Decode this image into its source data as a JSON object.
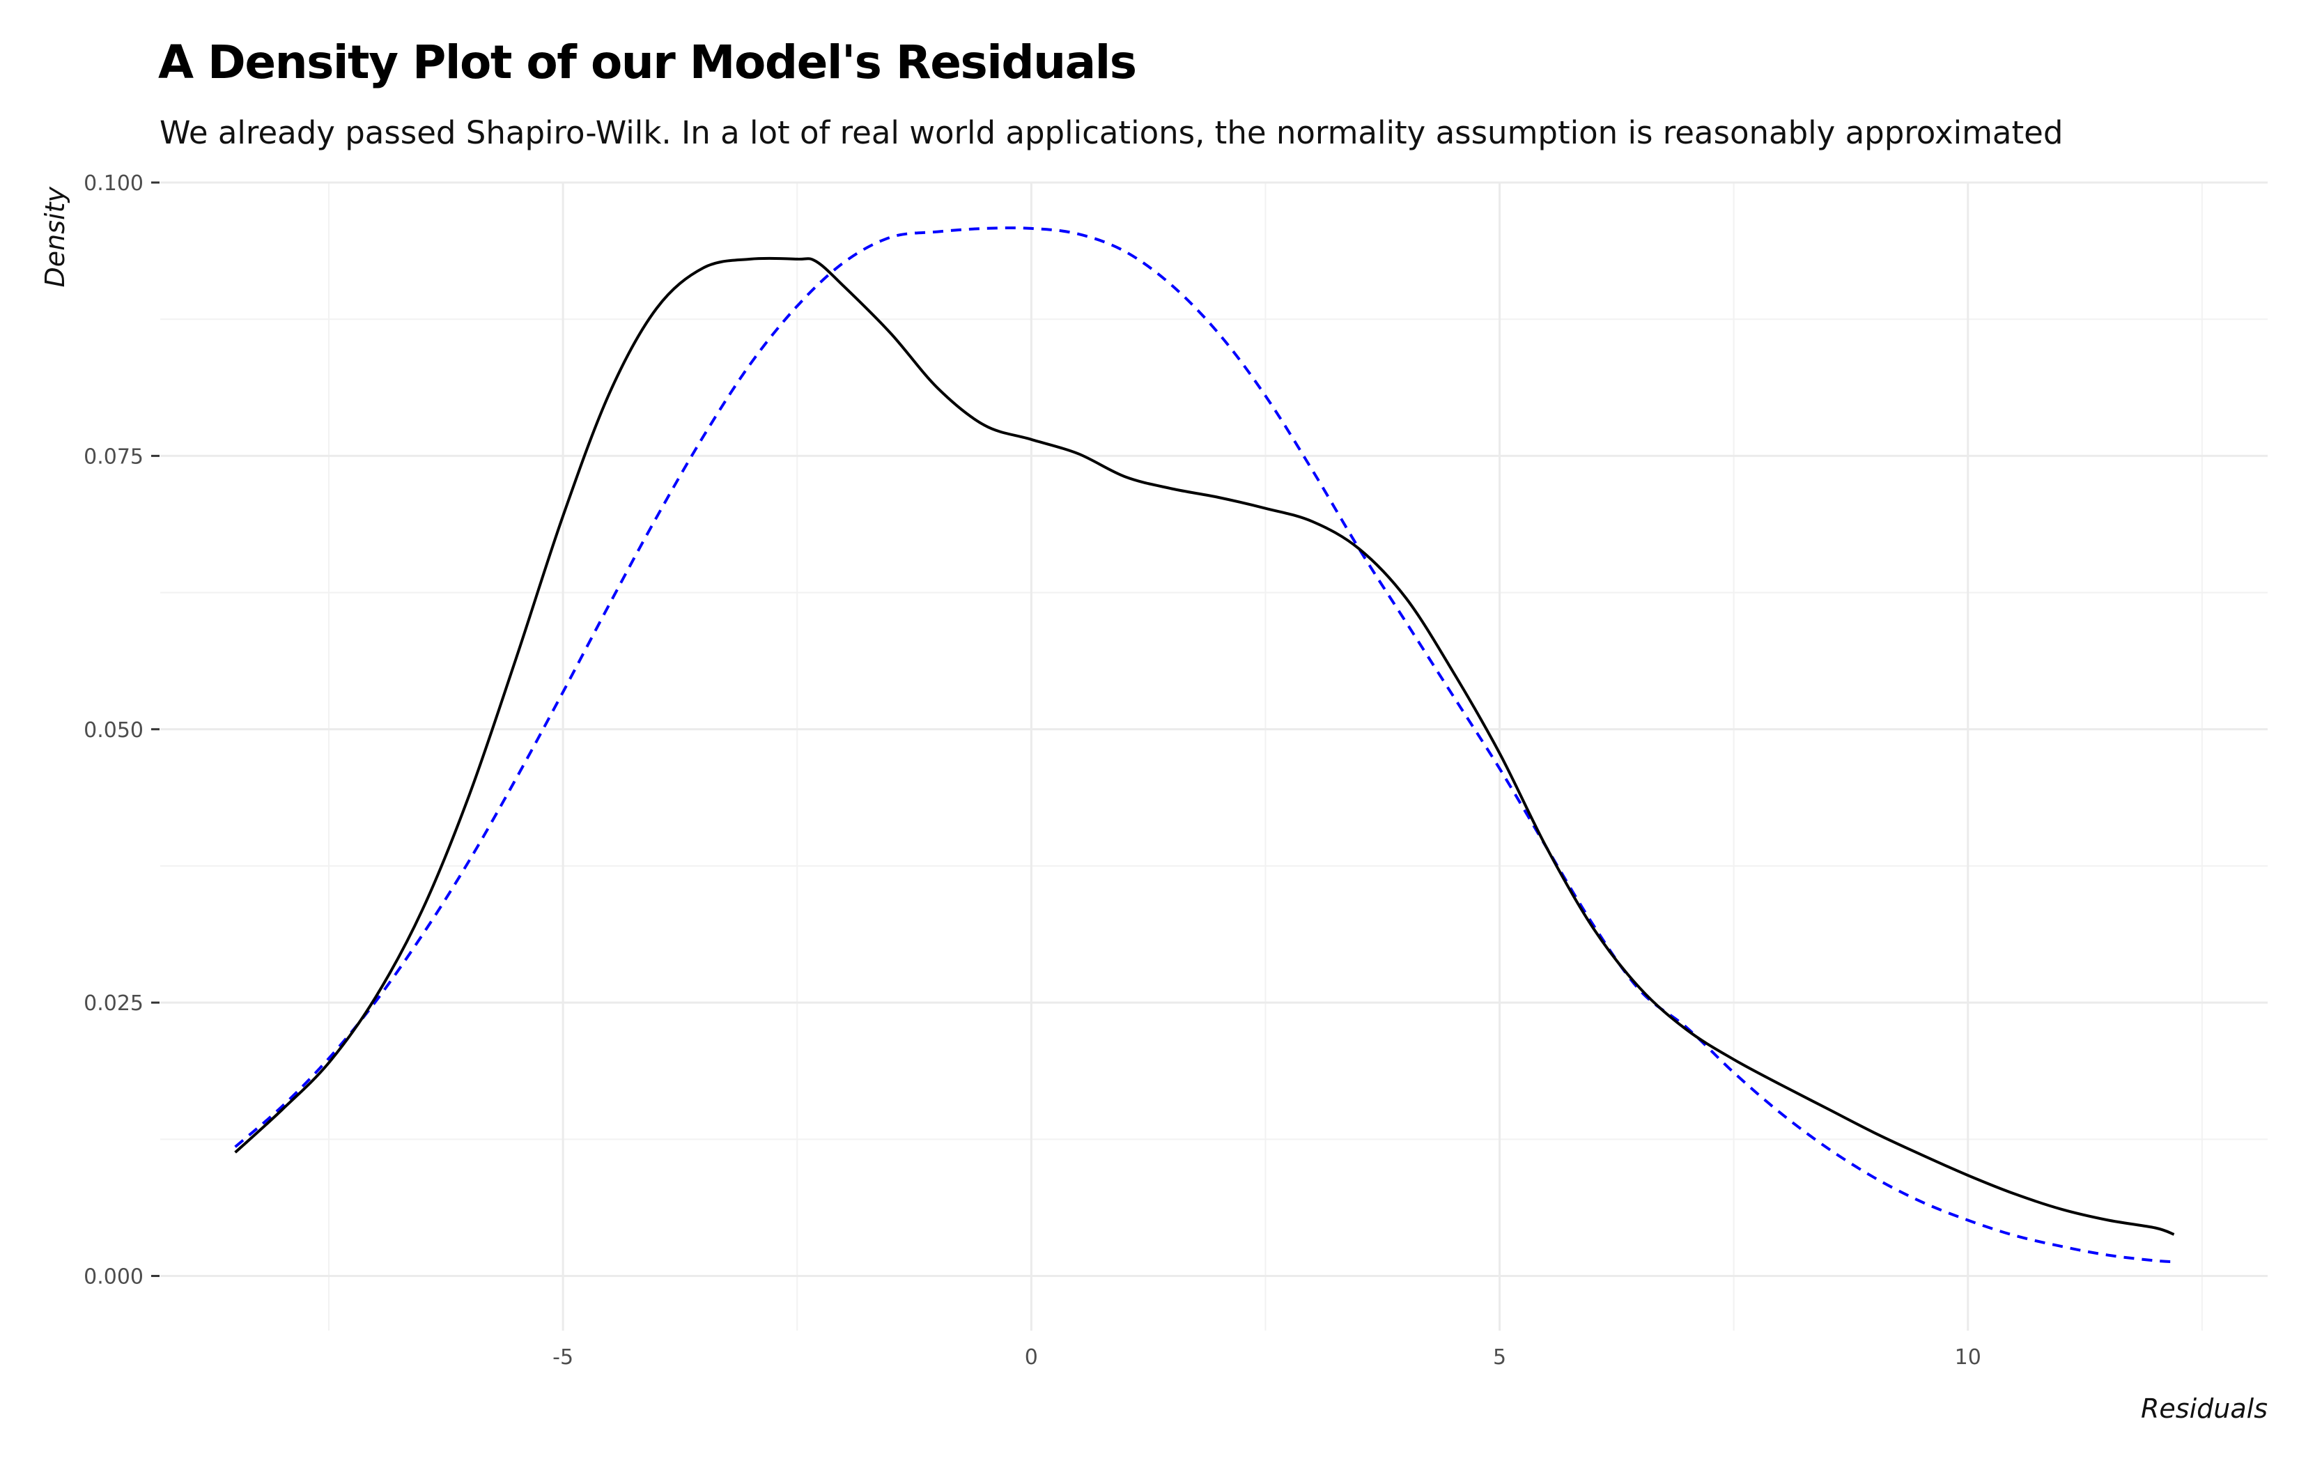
{
  "chart_data": {
    "type": "line",
    "title": "A Density Plot of our Model's Residuals",
    "subtitle": "We already passed Shapiro-Wilk. In a lot of real world applications, the normality assumption is reasonably approximated",
    "xlabel": "Residuals",
    "ylabel": "Density",
    "xlim": [
      -9.3,
      13.2
    ],
    "ylim": [
      -0.005,
      0.1
    ],
    "x_ticks": [
      -5,
      0,
      5,
      10
    ],
    "x_tick_labels": [
      "-5",
      "0",
      "5",
      "10"
    ],
    "y_ticks": [
      0.0,
      0.025,
      0.05,
      0.075,
      0.1
    ],
    "y_tick_labels": [
      "0.000",
      "0.025",
      "0.050",
      "0.075",
      "0.100"
    ],
    "grid": true,
    "legend": "none",
    "series": [
      {
        "style": "solid",
        "color": "#000000",
        "x": [
          -8.5,
          -8.0,
          -7.5,
          -7.0,
          -6.5,
          -6.0,
          -5.5,
          -5.0,
          -4.5,
          -4.0,
          -3.5,
          -3.0,
          -2.5,
          -2.3,
          -2.0,
          -1.5,
          -1.0,
          -0.5,
          0.0,
          0.5,
          1.0,
          1.5,
          2.0,
          2.5,
          3.0,
          3.5,
          4.0,
          4.5,
          5.0,
          5.5,
          6.0,
          6.5,
          7.0,
          7.5,
          8.0,
          8.5,
          9.0,
          9.5,
          10.0,
          10.5,
          11.0,
          11.5,
          12.0,
          12.2
        ],
        "y": [
          0.0113,
          0.0152,
          0.0195,
          0.0255,
          0.0335,
          0.044,
          0.0565,
          0.0695,
          0.0808,
          0.0885,
          0.0922,
          0.093,
          0.093,
          0.0928,
          0.0905,
          0.0862,
          0.0812,
          0.0778,
          0.0765,
          0.0752,
          0.0731,
          0.072,
          0.0712,
          0.0702,
          0.069,
          0.0665,
          0.062,
          0.0553,
          0.0478,
          0.0392,
          0.0318,
          0.0263,
          0.0225,
          0.0198,
          0.0175,
          0.0153,
          0.0131,
          0.0111,
          0.0092,
          0.0075,
          0.0061,
          0.0051,
          0.0044,
          0.0038
        ]
      },
      {
        "style": "dashed",
        "color": "#0000ff",
        "x": [
          -8.5,
          -8.0,
          -7.5,
          -7.0,
          -6.5,
          -6.0,
          -5.5,
          -5.0,
          -4.5,
          -4.0,
          -3.5,
          -3.0,
          -2.5,
          -2.0,
          -1.5,
          -1.0,
          -0.5,
          0.0,
          0.5,
          1.0,
          1.5,
          2.0,
          2.5,
          3.0,
          3.5,
          4.0,
          4.5,
          5.0,
          5.5,
          6.0,
          6.5,
          7.0,
          7.5,
          8.0,
          8.5,
          9.0,
          9.5,
          10.0,
          10.5,
          11.0,
          11.5,
          12.0,
          12.2
        ],
        "y": [
          0.0118,
          0.0155,
          0.0199,
          0.0251,
          0.0312,
          0.038,
          0.0455,
          0.0534,
          0.0615,
          0.0694,
          0.0768,
          0.0834,
          0.0887,
          0.0927,
          0.095,
          0.0955,
          0.0958,
          0.0958,
          0.0953,
          0.0937,
          0.0906,
          0.0862,
          0.0805,
          0.0737,
          0.0665,
          0.0598,
          0.0531,
          0.0464,
          0.0392,
          0.0321,
          0.0261,
          0.0227,
          0.0186,
          0.0149,
          0.0117,
          0.009,
          0.0068,
          0.0051,
          0.0037,
          0.0027,
          0.0019,
          0.0014,
          0.0013
        ]
      }
    ]
  }
}
